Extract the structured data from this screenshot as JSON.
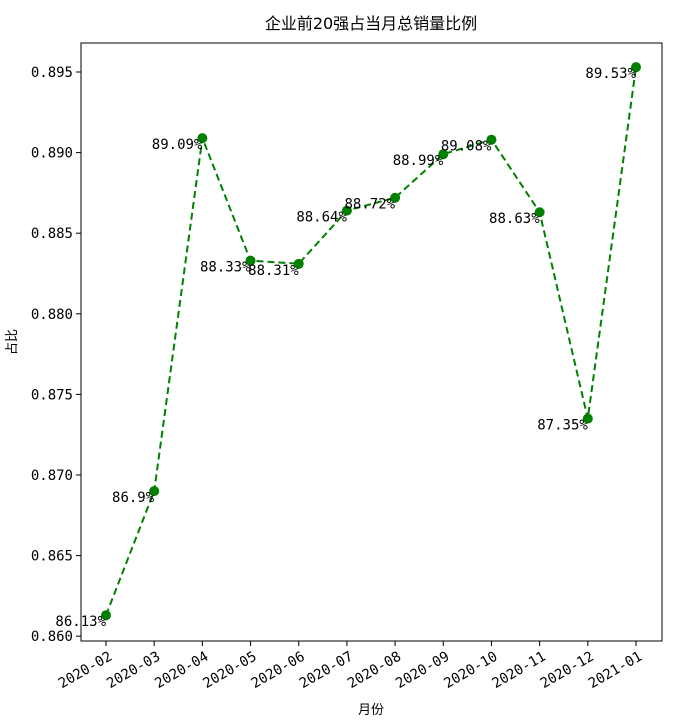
{
  "chart_data": {
    "type": "line",
    "title": "企业前20强占当月总销量比例",
    "xlabel": "月份",
    "ylabel": "占比",
    "categories": [
      "2020-02",
      "2020-03",
      "2020-04",
      "2020-05",
      "2020-06",
      "2020-07",
      "2020-08",
      "2020-09",
      "2020-10",
      "2020-11",
      "2020-12",
      "2021-01"
    ],
    "values": [
      0.8613,
      0.869,
      0.8909,
      0.8833,
      0.8831,
      0.8864,
      0.8872,
      0.8899,
      0.8908,
      0.8863,
      0.8735,
      0.8953
    ],
    "data_labels": [
      "86.13%",
      "86.9%",
      "89.09%",
      "88.33%",
      "88.31%",
      "88.64%",
      "88.72%",
      "88.99%",
      "89.08%",
      "88.63%",
      "87.35%",
      "89.53%"
    ],
    "yticks": [
      0.86,
      0.865,
      0.87,
      0.875,
      0.88,
      0.885,
      0.89,
      0.895
    ],
    "ytick_labels": [
      "0.860",
      "0.865",
      "0.870",
      "0.875",
      "0.880",
      "0.885",
      "0.890",
      "0.895"
    ],
    "ylim": [
      0.8597,
      0.8968
    ],
    "line_color": "#008000",
    "line_style": "dashed",
    "marker": "circle",
    "grid": false,
    "legend": "none"
  }
}
